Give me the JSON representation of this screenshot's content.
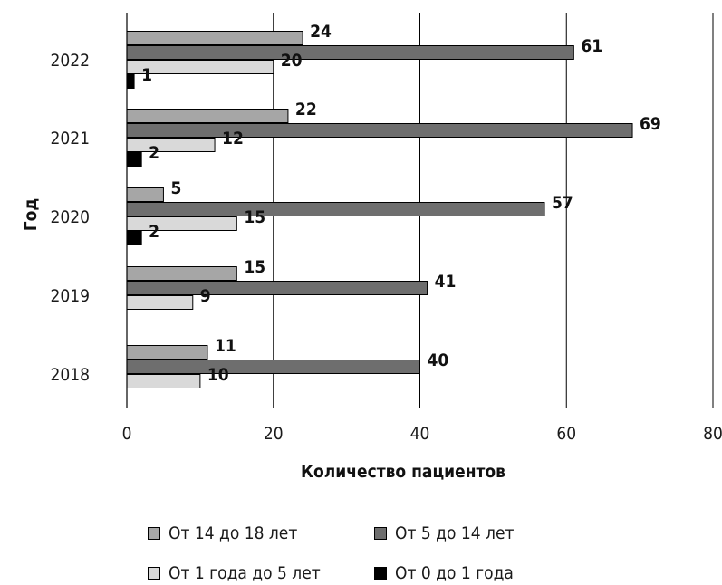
{
  "chart_data": {
    "type": "bar",
    "orientation": "horizontal",
    "categories": [
      "2022",
      "2021",
      "2020",
      "2019",
      "2018"
    ],
    "series": [
      {
        "name": "От 14 до 18 лет",
        "color": "#a6a6a6",
        "values": [
          24,
          22,
          5,
          15,
          11
        ]
      },
      {
        "name": "От 5 до 14 лет",
        "color": "#6e6e6e",
        "values": [
          61,
          69,
          57,
          41,
          40
        ]
      },
      {
        "name": "От 1 года до 5 лет",
        "color": "#d9d9d9",
        "values": [
          20,
          12,
          15,
          9,
          10
        ]
      },
      {
        "name": "От 0 до 1 года",
        "color": "#000000",
        "values": [
          1,
          2,
          2,
          null,
          null
        ]
      }
    ],
    "xlabel": "Количество пациентов",
    "ylabel": "Год",
    "xlim": [
      0,
      80
    ],
    "xticks": [
      0,
      20,
      40,
      60,
      80
    ],
    "grid": "vertical",
    "legend_position": "bottom"
  }
}
